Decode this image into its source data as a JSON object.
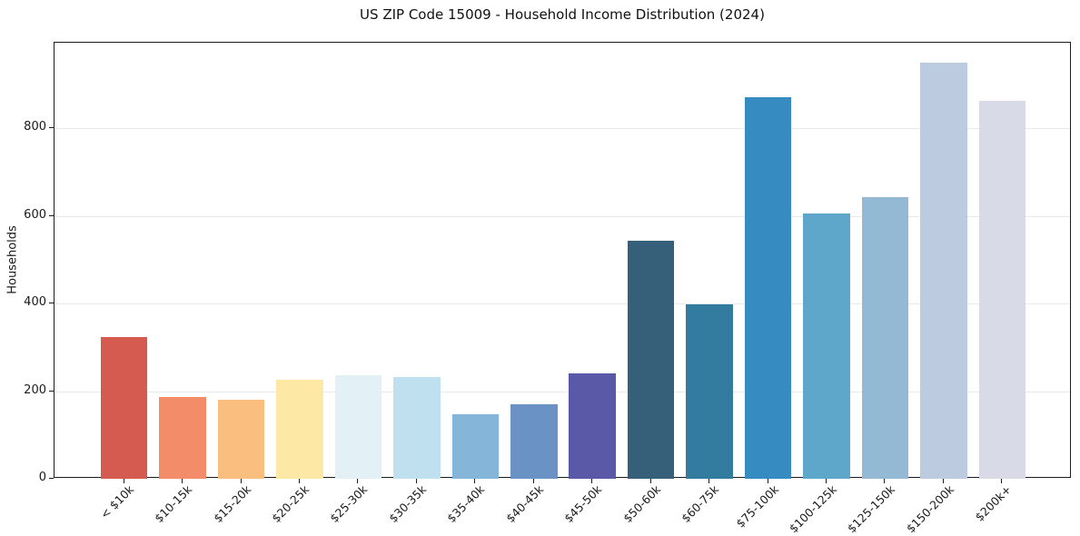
{
  "chart_data": {
    "type": "bar",
    "title": "US ZIP Code 15009 - Household Income Distribution (2024)",
    "xlabel": "",
    "ylabel": "Households",
    "categories": [
      "< $10k",
      "$10-15k",
      "$15-20k",
      "$20-25k",
      "$25-30k",
      "$30-35k",
      "$35-40k",
      "$40-45k",
      "$45-50k",
      "$50-60k",
      "$60-75k",
      "$75-100k",
      "$100-125k",
      "$125-150k",
      "$150-200k",
      "$200k+"
    ],
    "values": [
      324,
      187,
      180,
      227,
      237,
      232,
      147,
      170,
      240,
      544,
      398,
      871,
      607,
      643,
      950,
      863
    ],
    "bar_colors": [
      "#d55a50",
      "#f38d69",
      "#fabe7e",
      "#fde8a6",
      "#e3f1f7",
      "#bfe0ee",
      "#85b5d9",
      "#6a92c5",
      "#5a59a8",
      "#36607a",
      "#337c9f",
      "#368cc1",
      "#5fa7ca",
      "#93b9d4",
      "#bdcbe0",
      "#d8dae7"
    ],
    "ylim": [
      0,
      996
    ],
    "yticks": [
      0,
      200,
      400,
      600,
      800
    ],
    "grid": "horizontal-only",
    "legend": "none",
    "plot_bg": "#ffffff",
    "grid_color": "#e9e9e9",
    "spine_color": "#1c1c1c",
    "text_color": "#1a1a1a"
  }
}
